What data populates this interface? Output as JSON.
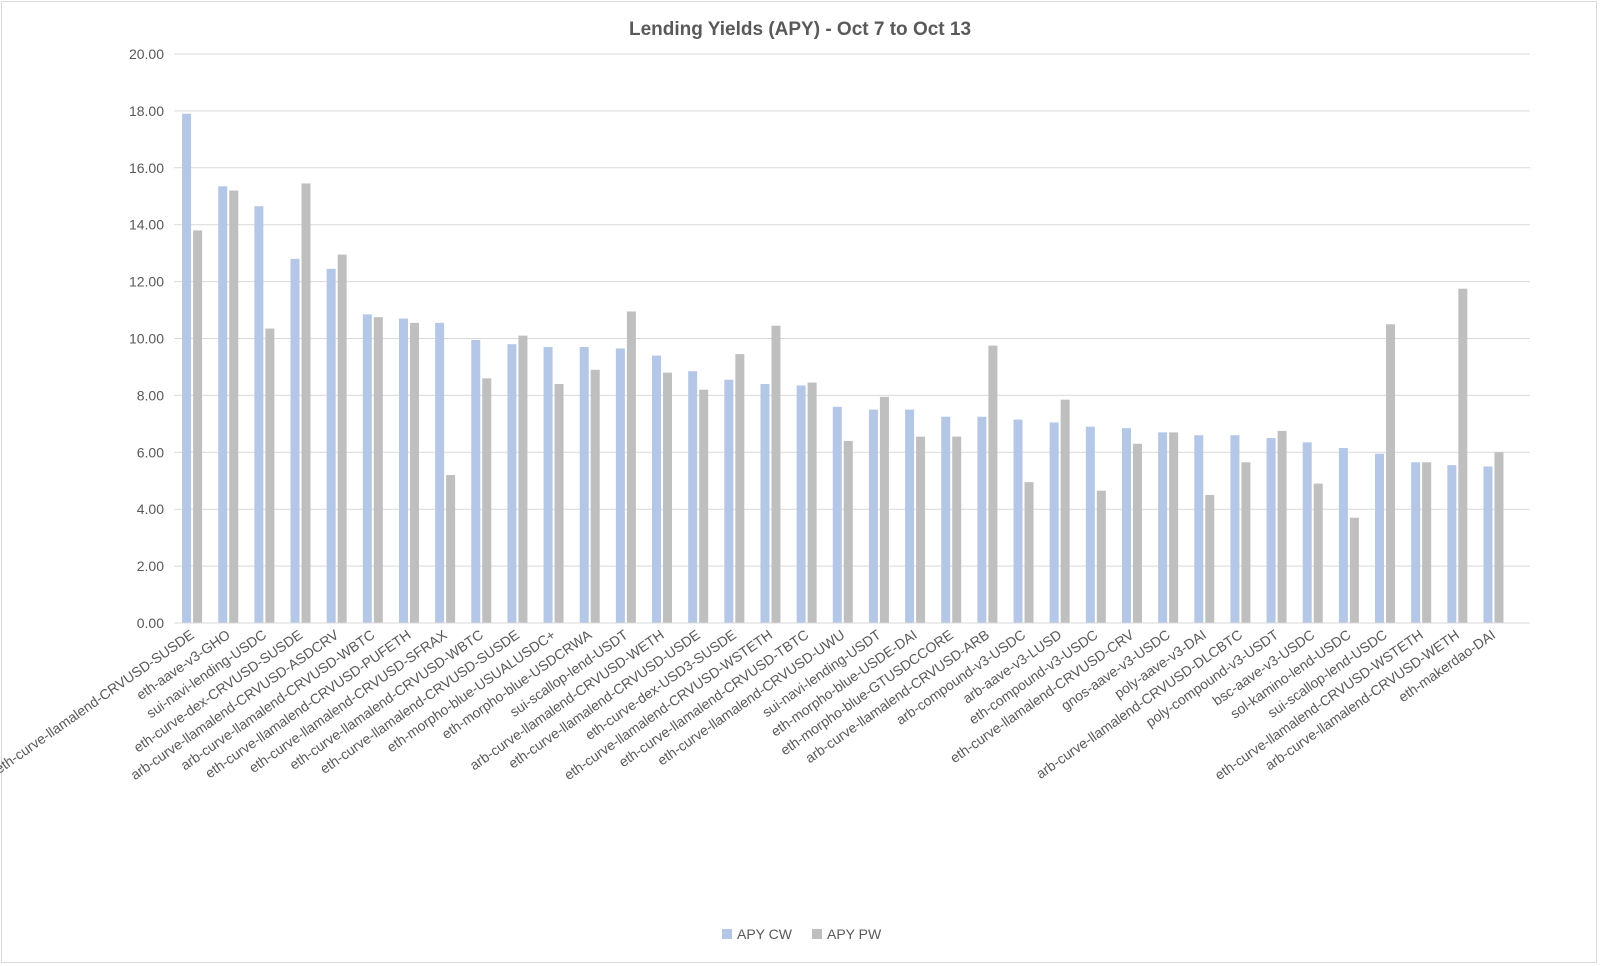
{
  "chart_data": {
    "type": "bar",
    "title": "Lending Yields (APY) - Oct 7 to Oct 13",
    "xlabel": "",
    "ylabel": "",
    "ylim": [
      0,
      20
    ],
    "yticks": [
      "0.00",
      "2.00",
      "4.00",
      "6.00",
      "8.00",
      "10.00",
      "12.00",
      "14.00",
      "16.00",
      "18.00",
      "20.00"
    ],
    "grid": true,
    "legend_position": "bottom",
    "categories": [
      "eth-curve-llamalend-CRVUSD-SUSDE",
      "eth-aave-v3-GHO",
      "sui-navi-lending-USDC",
      "eth-curve-dex-CRVUSD-SUSDE",
      "arb-curve-llamalend-CRVUSD-ASDCRV",
      "arb-curve-llamalend-CRVUSD-WBTC",
      "eth-curve-llamalend-CRVUSD-PUFETH",
      "eth-curve-llamalend-CRVUSD-SFRAX",
      "eth-curve-llamalend-CRVUSD-WBTC",
      "eth-curve-llamalend-CRVUSD-SUSDE",
      "eth-morpho-blue-USUALUSDC+",
      "eth-morpho-blue-USDCRWA",
      "sui-scallop-lend-USDT",
      "arb-curve-llamalend-CRVUSD-WETH",
      "eth-curve-llamalend-CRVUSD-USDE",
      "eth-curve-dex-USD3-SUSDE",
      "eth-curve-llamalend-CRVUSD-WSTETH",
      "eth-curve-llamalend-CRVUSD-TBTC",
      "eth-curve-llamalend-CRVUSD-UWU",
      "sui-navi-lending-USDT",
      "eth-morpho-blue-USDE-DAI",
      "eth-morpho-blue-GTUSDCCORE",
      "arb-curve-llamalend-CRVUSD-ARB",
      "arb-compound-v3-USDC",
      "arb-aave-v3-LUSD",
      "eth-compound-v3-USDC",
      "eth-curve-llamalend-CRVUSD-CRV",
      "gnos-aave-v3-USDC",
      "poly-aave-v3-DAI",
      "arb-curve-llamalend-CRVUSD-DLCBTC",
      "poly-compound-v3-USDT",
      "bsc-aave-v3-USDC",
      "sol-kamino-lend-USDC",
      "sui-scallop-lend-USDC",
      "eth-curve-llamalend-CRVUSD-WSTETH",
      "arb-curve-llamalend-CRVUSD-WETH",
      "eth-makerdao-DAI"
    ],
    "series": [
      {
        "name": "APY CW",
        "color": "#b4c7e7",
        "values": [
          17.9,
          15.35,
          14.65,
          12.8,
          12.45,
          10.85,
          10.7,
          10.55,
          9.95,
          9.8,
          9.7,
          9.7,
          9.65,
          9.4,
          8.85,
          8.55,
          8.4,
          8.35,
          7.6,
          7.5,
          7.5,
          7.25,
          7.25,
          7.15,
          7.05,
          6.9,
          6.85,
          6.7,
          6.6,
          6.6,
          6.5,
          6.35,
          6.15,
          5.95,
          5.65,
          5.55,
          5.5
        ]
      },
      {
        "name": "APY PW",
        "color": "#bfbfbf",
        "values": [
          13.8,
          15.2,
          10.35,
          15.45,
          12.95,
          10.75,
          10.55,
          5.2,
          8.6,
          10.1,
          8.4,
          8.9,
          10.95,
          8.8,
          8.2,
          9.45,
          10.45,
          8.45,
          6.4,
          7.95,
          6.55,
          6.55,
          9.75,
          4.95,
          7.85,
          4.65,
          6.3,
          6.7,
          4.5,
          5.65,
          6.75,
          4.9,
          3.7,
          10.5,
          5.65,
          11.75,
          6.0
        ]
      }
    ]
  }
}
